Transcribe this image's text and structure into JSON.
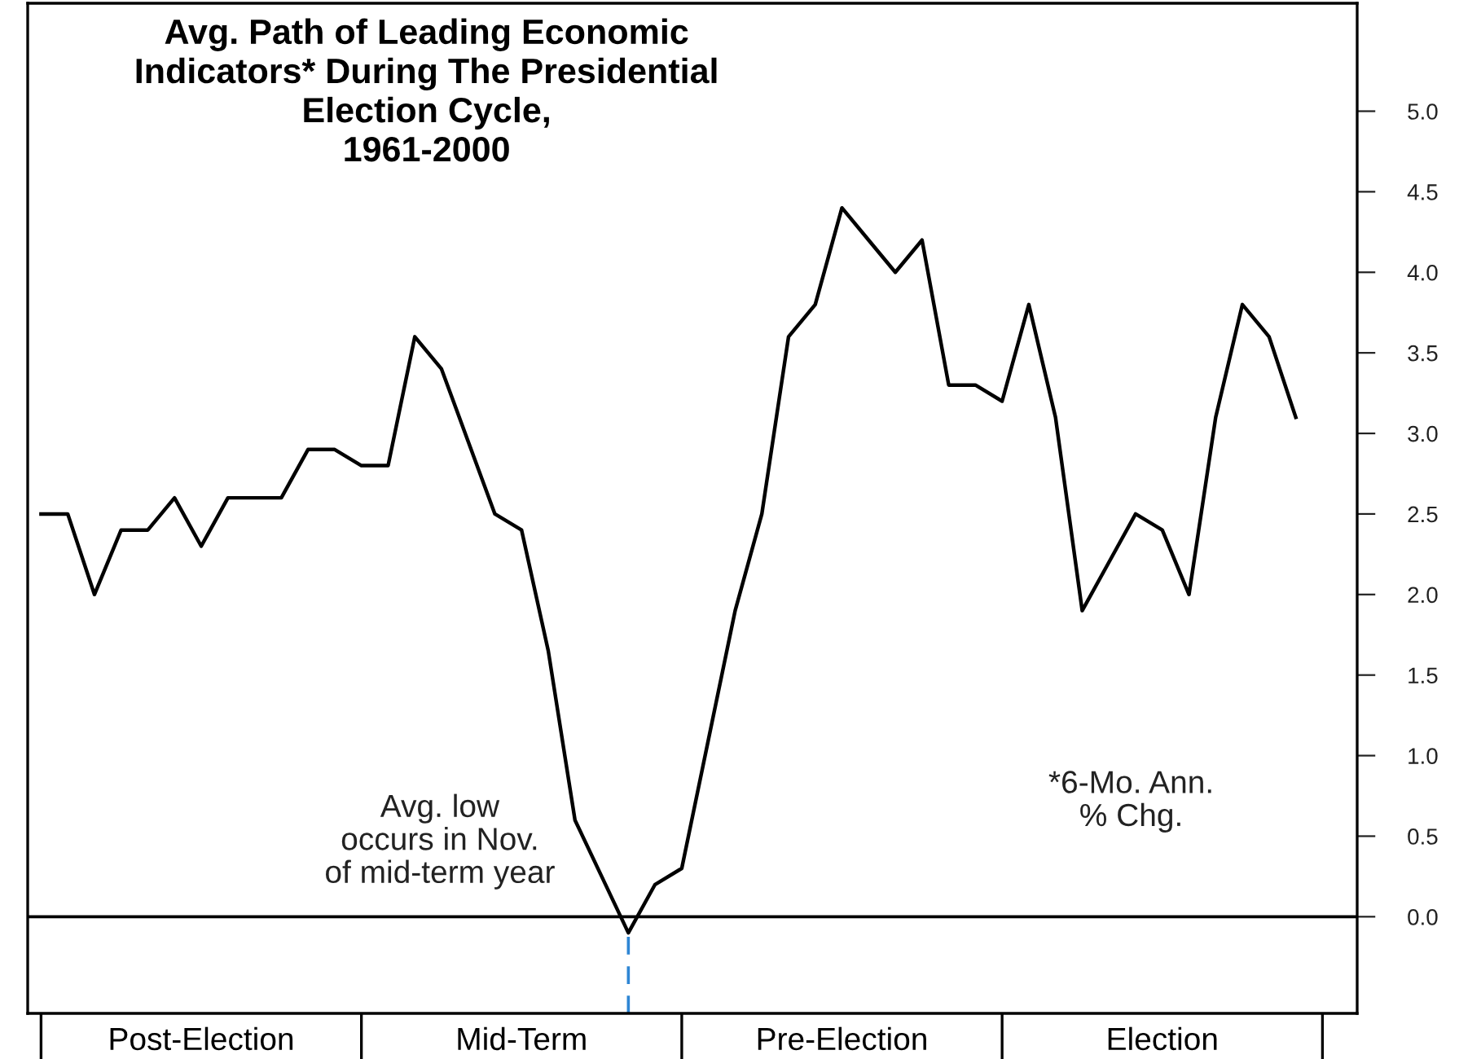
{
  "chart_data": {
    "type": "line",
    "title": "Avg. Path of Leading Economic\nIndicators* During The Presidential\nElection Cycle,\n1961-2000",
    "categories": [
      null,
      null,
      null,
      null,
      null,
      null,
      "Post-Election",
      null,
      null,
      null,
      null,
      null,
      null,
      null,
      null,
      null,
      null,
      null,
      "Mid-Term",
      null,
      null,
      null,
      null,
      null,
      null,
      null,
      null,
      null,
      null,
      null,
      "Pre-Election",
      null,
      null,
      null,
      null,
      null,
      null,
      null,
      null,
      null,
      null,
      null,
      "Election",
      null,
      null,
      null,
      null,
      null
    ],
    "series": [
      {
        "color": "#000000",
        "values": [
          2.5,
          2.5,
          2.0,
          2.4,
          2.4,
          2.6,
          2.3,
          2.6,
          2.6,
          2.6,
          2.9,
          2.9,
          2.8,
          2.8,
          3.6,
          3.4,
          2.95,
          2.5,
          2.4,
          1.65,
          0.6,
          0.25,
          -0.1,
          0.2,
          0.3,
          1.1,
          1.9,
          2.5,
          3.6,
          3.8,
          4.4,
          4.2,
          4.0,
          4.2,
          3.3,
          3.3,
          3.2,
          3.8,
          3.1,
          1.9,
          2.2,
          2.5,
          2.4,
          2.0,
          3.1,
          3.8,
          3.6,
          3.1
        ]
      }
    ],
    "ylim": [
      -0.6,
      5.67
    ],
    "yticks": [
      {
        "value": 0,
        "label": "0.0"
      },
      {
        "value": 0.5,
        "label": "0.5"
      },
      {
        "value": 1,
        "label": "1.0"
      },
      {
        "value": 1.5,
        "label": "1.5"
      },
      {
        "value": 2,
        "label": "2.0"
      },
      {
        "value": 2.5,
        "label": "2.5"
      },
      {
        "value": 3,
        "label": "3.0"
      },
      {
        "value": 3.5,
        "label": "3.5"
      },
      {
        "value": 4,
        "label": "4.0"
      },
      {
        "value": 4.5,
        "label": "4.5"
      },
      {
        "value": 5,
        "label": "5.0"
      }
    ],
    "ref_lines": [
      {
        "axis": "y",
        "value": 0,
        "color": "#000000",
        "line_style": "solid"
      }
    ],
    "annotations": [
      "Avg. low\noccurs in Nov.\nof mid-term year",
      "*6-Mo. Ann.\n% Chg."
    ],
    "grid": false,
    "legend": false,
    "marker": "none",
    "line_style": "solid"
  }
}
